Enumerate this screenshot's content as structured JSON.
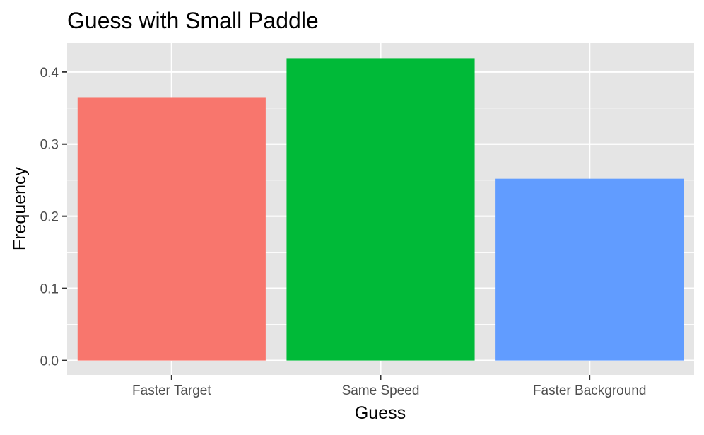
{
  "chart_data": {
    "type": "bar",
    "title": "Guess with Small Paddle",
    "xlabel": "Guess",
    "ylabel": "Frequency",
    "categories": [
      "Faster Target",
      "Same Speed",
      "Faster Background"
    ],
    "values": [
      0.365,
      0.419,
      0.252
    ],
    "colors": [
      "#F8766D",
      "#00BA38",
      "#619CFF"
    ],
    "ylim": [
      -0.02,
      0.44
    ],
    "yticks": [
      0.0,
      0.1,
      0.2,
      0.3,
      0.4
    ],
    "ytick_labels": [
      "0.0",
      "0.1",
      "0.2",
      "0.3",
      "0.4"
    ],
    "grid": true,
    "legend": "none",
    "panel_background": "#E5E5E5"
  }
}
